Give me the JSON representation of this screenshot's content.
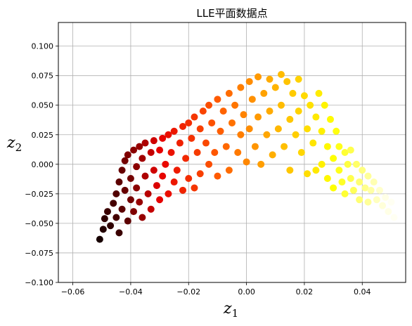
{
  "chart_data": {
    "type": "scatter",
    "title": "LLE平面数据点",
    "xlabel": {
      "base": "z",
      "sub": "1"
    },
    "ylabel": {
      "base": "z",
      "sub": "2"
    },
    "xlim": [
      -0.065,
      0.055
    ],
    "ylim": [
      -0.1,
      0.12
    ],
    "x_ticks": [
      -0.06,
      -0.04,
      -0.02,
      0.0,
      0.02,
      0.04
    ],
    "x_tick_labels": [
      "−0.06",
      "−0.04",
      "−0.02",
      "0.00",
      "0.02",
      "0.04"
    ],
    "y_ticks": [
      -0.1,
      -0.075,
      -0.05,
      -0.025,
      0.0,
      0.025,
      0.05,
      0.075,
      0.1
    ],
    "y_tick_labels": [
      "−0.100",
      "−0.075",
      "−0.050",
      "−0.025",
      "0.000",
      "0.025",
      "0.050",
      "0.075",
      "0.100"
    ],
    "grid": true,
    "colormap": "hot",
    "color_stops": [
      "#000000",
      "#e60000",
      "#ff5a00",
      "#ffb400",
      "#ffff00",
      "#ffffff"
    ],
    "marker_size": 5,
    "points": [
      [
        -0.0507,
        -0.0635,
        0.02
      ],
      [
        -0.0495,
        -0.055,
        0.03
      ],
      [
        -0.049,
        -0.046,
        0.04
      ],
      [
        -0.048,
        -0.04,
        0.05
      ],
      [
        -0.047,
        -0.052,
        0.04
      ],
      [
        -0.046,
        -0.033,
        0.06
      ],
      [
        -0.045,
        -0.025,
        0.07
      ],
      [
        -0.045,
        -0.045,
        0.06
      ],
      [
        -0.044,
        -0.058,
        0.05
      ],
      [
        -0.044,
        -0.015,
        0.08
      ],
      [
        -0.043,
        -0.005,
        0.09
      ],
      [
        -0.043,
        -0.038,
        0.08
      ],
      [
        -0.042,
        0.003,
        0.1
      ],
      [
        -0.042,
        -0.022,
        0.09
      ],
      [
        -0.041,
        -0.048,
        0.08
      ],
      [
        -0.041,
        0.008,
        0.11
      ],
      [
        -0.04,
        -0.012,
        0.1
      ],
      [
        -0.04,
        -0.03,
        0.1
      ],
      [
        -0.039,
        0.012,
        0.12
      ],
      [
        -0.039,
        -0.04,
        0.11
      ],
      [
        -0.038,
        -0.002,
        0.12
      ],
      [
        -0.038,
        -0.02,
        0.12
      ],
      [
        -0.037,
        0.015,
        0.13
      ],
      [
        -0.037,
        -0.032,
        0.13
      ],
      [
        -0.036,
        0.005,
        0.14
      ],
      [
        -0.036,
        -0.045,
        0.13
      ],
      [
        -0.035,
        -0.01,
        0.15
      ],
      [
        -0.035,
        0.018,
        0.15
      ],
      [
        -0.034,
        -0.025,
        0.16
      ],
      [
        -0.033,
        0.01,
        0.17
      ],
      [
        -0.033,
        -0.038,
        0.17
      ],
      [
        -0.032,
        0.02,
        0.18
      ],
      [
        -0.032,
        -0.005,
        0.18
      ],
      [
        -0.031,
        -0.018,
        0.19
      ],
      [
        -0.03,
        0.012,
        0.2
      ],
      [
        -0.03,
        -0.03,
        0.2
      ],
      [
        -0.029,
        0.022,
        0.21
      ],
      [
        -0.029,
        -0.01,
        0.21
      ],
      [
        -0.028,
        0.0,
        0.22
      ],
      [
        -0.027,
        -0.025,
        0.23
      ],
      [
        -0.027,
        0.025,
        0.23
      ],
      [
        -0.026,
        0.01,
        0.24
      ],
      [
        -0.025,
        -0.015,
        0.25
      ],
      [
        -0.025,
        0.028,
        0.25
      ],
      [
        -0.024,
        -0.005,
        0.26
      ],
      [
        -0.023,
        0.018,
        0.27
      ],
      [
        -0.022,
        -0.022,
        0.28
      ],
      [
        -0.022,
        0.032,
        0.28
      ],
      [
        -0.021,
        0.005,
        0.29
      ],
      [
        -0.02,
        0.035,
        0.3
      ],
      [
        -0.02,
        -0.012,
        0.3
      ],
      [
        -0.019,
        0.022,
        0.31
      ],
      [
        -0.018,
        -0.02,
        0.32
      ],
      [
        -0.018,
        0.04,
        0.32
      ],
      [
        -0.017,
        0.01,
        0.33
      ],
      [
        -0.016,
        0.03,
        0.34
      ],
      [
        -0.016,
        -0.008,
        0.34
      ],
      [
        -0.015,
        0.045,
        0.35
      ],
      [
        -0.014,
        0.018,
        0.36
      ],
      [
        -0.013,
        0.05,
        0.37
      ],
      [
        -0.013,
        0.0,
        0.37
      ],
      [
        -0.012,
        0.035,
        0.38
      ],
      [
        -0.011,
        0.01,
        0.39
      ],
      [
        -0.01,
        0.055,
        0.4
      ],
      [
        -0.01,
        -0.01,
        0.4
      ],
      [
        -0.009,
        0.028,
        0.41
      ],
      [
        -0.008,
        0.045,
        0.42
      ],
      [
        -0.007,
        0.015,
        0.43
      ],
      [
        -0.006,
        0.06,
        0.44
      ],
      [
        -0.006,
        -0.005,
        0.44
      ],
      [
        -0.005,
        0.035,
        0.45
      ],
      [
        -0.004,
        0.05,
        0.46
      ],
      [
        -0.003,
        0.01,
        0.47
      ],
      [
        -0.002,
        0.065,
        0.48
      ],
      [
        -0.002,
        0.025,
        0.48
      ],
      [
        -0.001,
        0.042,
        0.49
      ],
      [
        0.0,
        0.002,
        0.5
      ],
      [
        0.001,
        0.07,
        0.51
      ],
      [
        0.001,
        0.03,
        0.51
      ],
      [
        0.002,
        0.055,
        0.52
      ],
      [
        0.003,
        0.015,
        0.53
      ],
      [
        0.004,
        0.074,
        0.54
      ],
      [
        0.004,
        0.04,
        0.54
      ],
      [
        0.005,
        0.0,
        0.55
      ],
      [
        0.006,
        0.06,
        0.56
      ],
      [
        0.007,
        0.025,
        0.57
      ],
      [
        0.008,
        0.072,
        0.58
      ],
      [
        0.008,
        0.045,
        0.58
      ],
      [
        0.009,
        0.008,
        0.59
      ],
      [
        0.01,
        0.065,
        0.6
      ],
      [
        0.011,
        0.03,
        0.61
      ],
      [
        0.012,
        0.076,
        0.62
      ],
      [
        0.012,
        0.05,
        0.62
      ],
      [
        0.013,
        0.015,
        0.63
      ],
      [
        0.014,
        0.07,
        0.64
      ],
      [
        0.015,
        0.038,
        0.65
      ],
      [
        0.015,
        -0.005,
        0.65
      ],
      [
        0.016,
        0.06,
        0.66
      ],
      [
        0.017,
        0.025,
        0.67
      ],
      [
        0.018,
        0.072,
        0.68
      ],
      [
        0.018,
        0.045,
        0.68
      ],
      [
        0.019,
        0.01,
        0.69
      ],
      [
        0.02,
        0.058,
        0.7
      ],
      [
        0.021,
        0.03,
        0.71
      ],
      [
        0.021,
        -0.008,
        0.71
      ],
      [
        0.022,
        0.05,
        0.72
      ],
      [
        0.023,
        0.018,
        0.73
      ],
      [
        0.024,
        0.04,
        0.74
      ],
      [
        0.024,
        -0.005,
        0.74
      ],
      [
        0.025,
        0.06,
        0.75
      ],
      [
        0.026,
        0.028,
        0.76
      ],
      [
        0.026,
        0.0,
        0.76
      ],
      [
        0.027,
        0.05,
        0.77
      ],
      [
        0.028,
        0.015,
        0.78
      ],
      [
        0.028,
        -0.012,
        0.78
      ],
      [
        0.029,
        0.038,
        0.79
      ],
      [
        0.03,
        0.005,
        0.8
      ],
      [
        0.03,
        -0.02,
        0.8
      ],
      [
        0.031,
        0.028,
        0.81
      ],
      [
        0.032,
        -0.005,
        0.82
      ],
      [
        0.032,
        0.015,
        0.82
      ],
      [
        0.033,
        -0.015,
        0.83
      ],
      [
        0.034,
        0.01,
        0.84
      ],
      [
        0.034,
        -0.025,
        0.84
      ],
      [
        0.035,
        0.0,
        0.85
      ],
      [
        0.036,
        -0.012,
        0.86
      ],
      [
        0.036,
        0.012,
        0.86
      ],
      [
        0.037,
        -0.022,
        0.87
      ],
      [
        0.038,
        0.0,
        0.88
      ],
      [
        0.039,
        -0.015,
        0.89
      ],
      [
        0.039,
        -0.03,
        0.89
      ],
      [
        0.04,
        -0.005,
        0.9
      ],
      [
        0.041,
        -0.02,
        0.91
      ],
      [
        0.042,
        -0.01,
        0.92
      ],
      [
        0.042,
        -0.032,
        0.92
      ],
      [
        0.043,
        -0.022,
        0.93
      ],
      [
        0.044,
        -0.015,
        0.94
      ],
      [
        0.045,
        -0.03,
        0.95
      ],
      [
        0.046,
        -0.022,
        0.96
      ],
      [
        0.047,
        -0.035,
        0.97
      ],
      [
        0.048,
        -0.028,
        0.98
      ],
      [
        0.049,
        -0.04,
        0.98
      ],
      [
        0.05,
        -0.032,
        0.99
      ],
      [
        0.051,
        -0.045,
        0.99
      ],
      [
        0.052,
        -0.038,
        1.0
      ],
      [
        0.053,
        -0.042,
        1.0
      ]
    ]
  }
}
